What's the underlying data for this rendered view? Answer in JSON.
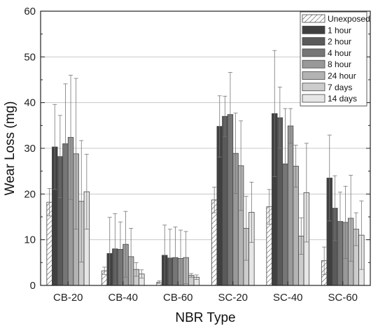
{
  "chart_data": {
    "type": "bar",
    "title": "",
    "xlabel": "NBR Type",
    "ylabel": "Wear Loss (mg)",
    "ylim": [
      0,
      60
    ],
    "yticks": [
      0,
      10,
      20,
      30,
      40,
      50,
      60
    ],
    "categories": [
      "CB-20",
      "CB-40",
      "CB-60",
      "SC-20",
      "SC-40",
      "SC-60"
    ],
    "grid": "horizontal",
    "legend_position": "top-right",
    "series": [
      {
        "name": "Unexposed",
        "color": "#ffffff",
        "pattern": "hatch",
        "values": [
          18.2,
          3.2,
          0.7,
          18.7,
          17.2,
          5.4
        ],
        "errors": [
          3.0,
          0.8,
          0.3,
          2.8,
          3.8,
          3.0
        ]
      },
      {
        "name": "1 hour",
        "color": "#404040",
        "values": [
          30.3,
          7.0,
          6.6,
          34.8,
          37.6,
          23.5
        ],
        "errors": [
          9.3,
          7.9,
          6.6,
          6.7,
          13.8,
          9.4
        ]
      },
      {
        "name": "2 hour",
        "color": "#5a5a5a",
        "values": [
          28.2,
          8.0,
          6.0,
          37.0,
          36.7,
          16.9
        ],
        "errors": [
          9.0,
          7.7,
          6.3,
          4.4,
          6.7,
          7.1
        ]
      },
      {
        "name": "4 hour",
        "color": "#767676",
        "values": [
          31.0,
          7.9,
          6.1,
          37.4,
          26.6,
          14.0
        ],
        "errors": [
          13.1,
          6.0,
          6.7,
          9.2,
          12.1,
          6.4
        ]
      },
      {
        "name": "8 hour",
        "color": "#999999",
        "values": [
          32.4,
          9.0,
          5.9,
          28.9,
          34.9,
          13.8
        ],
        "errors": [
          13.6,
          7.2,
          6.2,
          8.8,
          3.8,
          7.9
        ]
      },
      {
        "name": "24 hour",
        "color": "#b3b3b3",
        "values": [
          28.8,
          6.3,
          6.1,
          26.2,
          26.1,
          14.7
        ],
        "errors": [
          16.5,
          6.2,
          5.7,
          9.8,
          4.6,
          9.4
        ]
      },
      {
        "name": "7 days",
        "color": "#cccccc",
        "values": [
          18.4,
          3.5,
          2.2,
          12.5,
          10.8,
          12.3
        ],
        "errors": [
          13.3,
          1.5,
          0.4,
          7.0,
          4.0,
          3.6
        ]
      },
      {
        "name": "14 days",
        "color": "#e6e6e6",
        "values": [
          20.5,
          2.5,
          1.8,
          16.0,
          20.3,
          11.0
        ],
        "errors": [
          8.2,
          0.9,
          0.5,
          6.6,
          10.8,
          7.5
        ]
      }
    ]
  }
}
